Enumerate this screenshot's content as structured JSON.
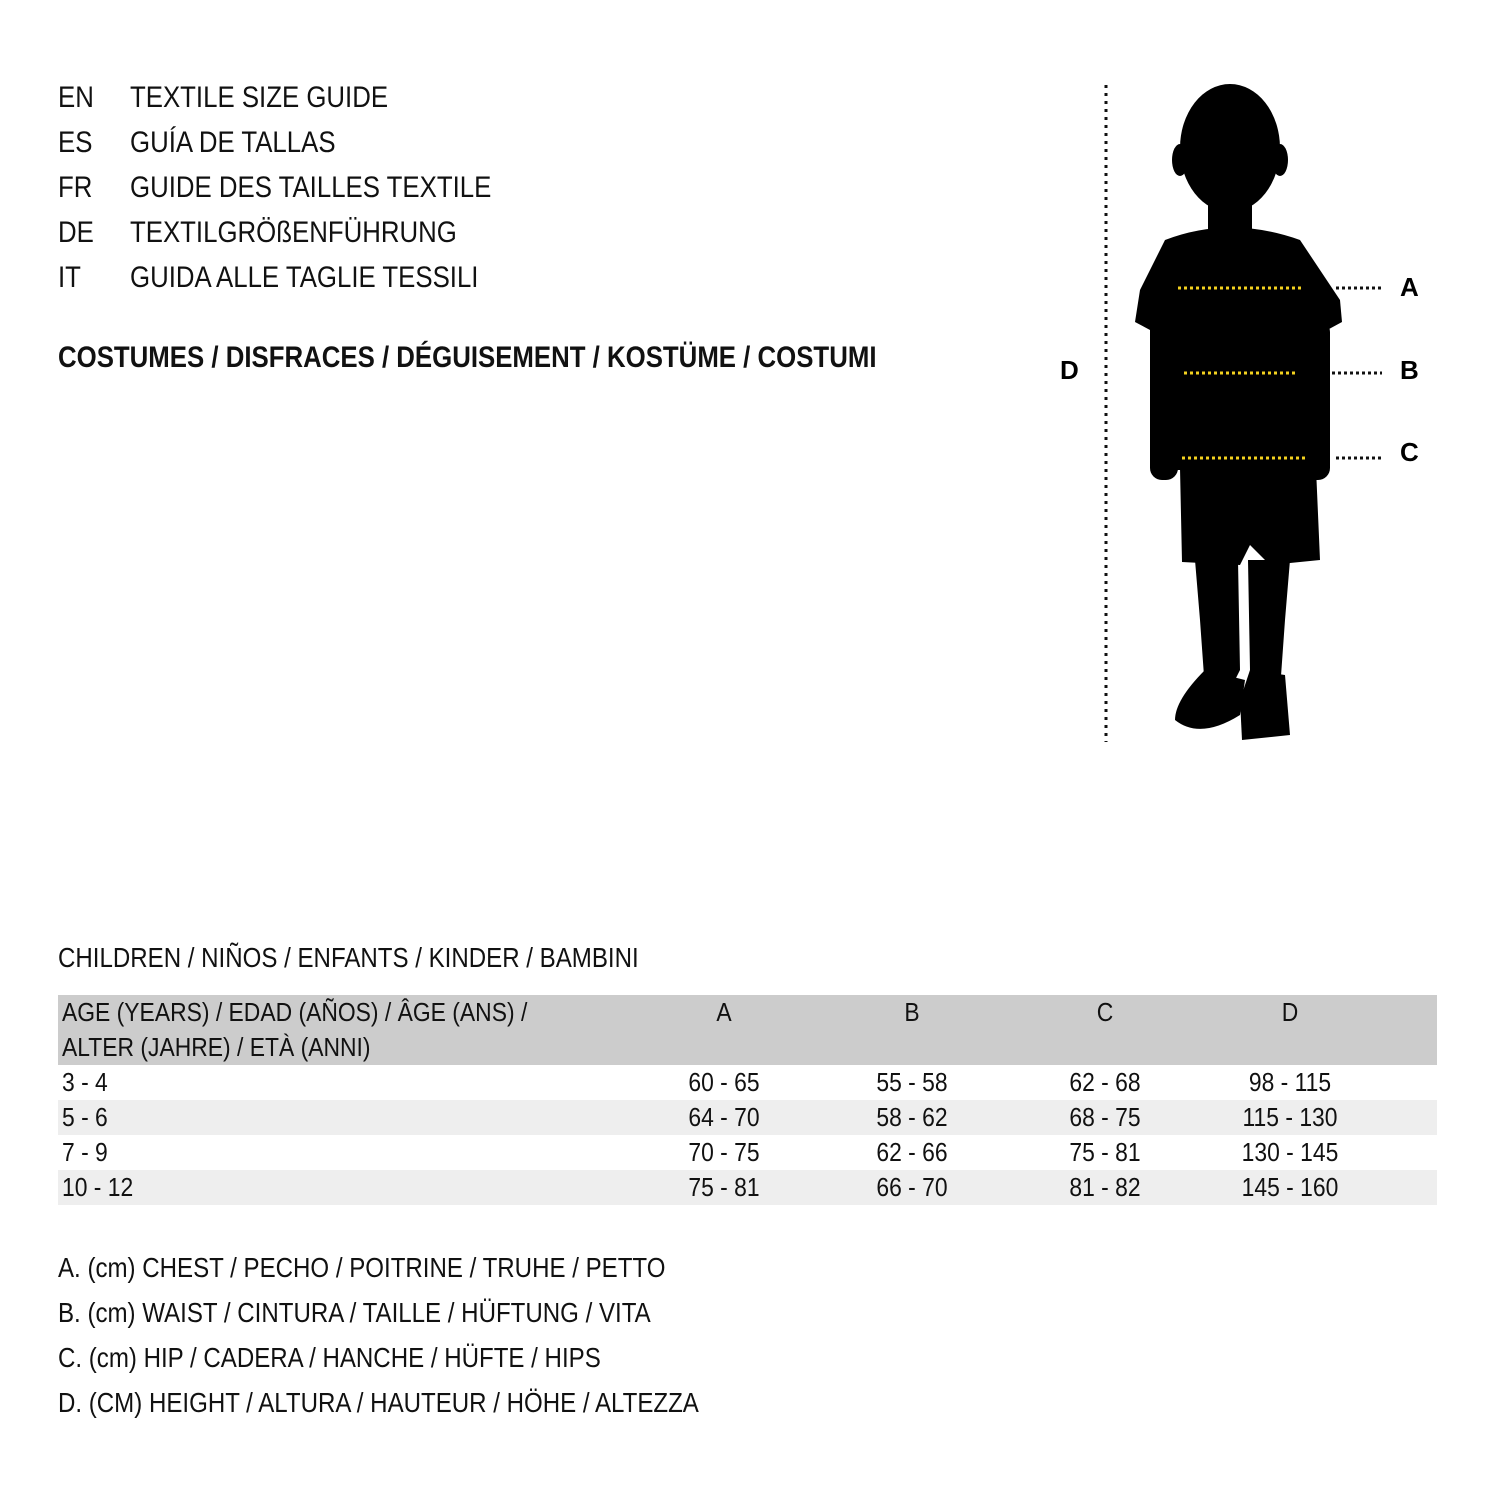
{
  "header": {
    "languages": [
      {
        "code": "EN",
        "title": "TEXTILE SIZE GUIDE"
      },
      {
        "code": "ES",
        "title": "GUÍA DE TALLAS"
      },
      {
        "code": "FR",
        "title": "GUIDE DES TAILLES TEXTILE"
      },
      {
        "code": "DE",
        "title": "TEXTILGRÖßENFÜHRUNG"
      },
      {
        "code": "IT",
        "title": "GUIDA ALLE TAGLIE TESSILI"
      }
    ],
    "subtitle": "COSTUMES / DISFRACES / DÉGUISEMENT / KOSTÜME / COSTUMI"
  },
  "figure": {
    "labels": [
      "A",
      "B",
      "C",
      "D"
    ]
  },
  "table": {
    "caption": "CHILDREN / NIÑOS / ENFANTS / KINDER / BAMBINI",
    "columns": [
      "AGE (YEARS) / EDAD (AÑOS) / ÂGE (ANS) / ALTER (JAHRE) / ETÀ (ANNI)",
      "A",
      "B",
      "C",
      "D"
    ],
    "rows": [
      [
        "3 - 4",
        "60 - 65",
        "55 - 58",
        "62 - 68",
        "98 - 115"
      ],
      [
        "5 - 6",
        "64 - 70",
        "58 - 62",
        "68 - 75",
        "115 - 130"
      ],
      [
        "7 - 9",
        "70 - 75",
        "62 - 66",
        "75 - 81",
        "130 - 145"
      ],
      [
        "10 - 12",
        "75 - 81",
        "66 - 70",
        "81 - 82",
        "145 - 160"
      ]
    ]
  },
  "legend": [
    "A. (cm) CHEST / PECHO / POITRINE / TRUHE / PETTO",
    "B. (cm) WAIST / CINTURA / TAILLE / HÜFTUNG / VITA",
    "C. (cm) HIP / CADERA / HANCHE / HÜFTE / HIPS",
    "D. (CM) HEIGHT / ALTURA / HAUTEUR / HÖHE / ALTEZZA"
  ]
}
